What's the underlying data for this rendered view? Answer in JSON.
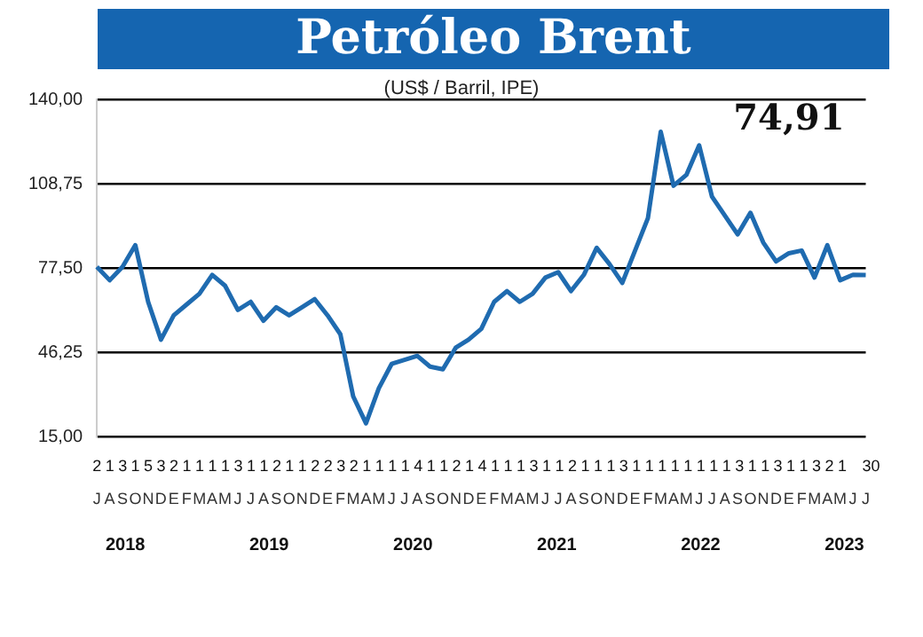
{
  "chart_data": {
    "type": "line",
    "title": "Petróleo Brent",
    "subtitle": "(US$ / Barril, IPE)",
    "categories": [
      "J",
      "A",
      "S",
      "O",
      "N",
      "D",
      "E",
      "F",
      "M",
      "A",
      "M",
      "J",
      "J",
      "A",
      "S",
      "O",
      "N",
      "D",
      "E",
      "F",
      "M",
      "A",
      "M",
      "J",
      "J",
      "A",
      "S",
      "O",
      "N",
      "D",
      "E",
      "F",
      "M",
      "A",
      "M",
      "J",
      "J",
      "A",
      "S",
      "O",
      "N",
      "D",
      "E",
      "F",
      "M",
      "A",
      "M",
      "J",
      "J",
      "A",
      "S",
      "O",
      "N",
      "D",
      "E",
      "F",
      "M",
      "A",
      "M",
      "J",
      "J"
    ],
    "series": [
      {
        "color": "#1f6bb0",
        "values": [
          78,
          73,
          78,
          86,
          65,
          51,
          60,
          64,
          68,
          75,
          71,
          62,
          65,
          58,
          63,
          60,
          63,
          66,
          60,
          53,
          30,
          20,
          33,
          42,
          43.5,
          45,
          41,
          40,
          48,
          51,
          55,
          65,
          69,
          65,
          68,
          74,
          76,
          69,
          75,
          85,
          79,
          72,
          84,
          96,
          128,
          108,
          112,
          123,
          104,
          97,
          90,
          98,
          87,
          80,
          83,
          84,
          74,
          86,
          73,
          75,
          74.91
        ]
      }
    ],
    "ylim": [
      15,
      140
    ],
    "yticks": [
      {
        "value": 15,
        "label": "15,00"
      },
      {
        "value": 46.25,
        "label": "46,25"
      },
      {
        "value": 77.5,
        "label": "77,50"
      },
      {
        "value": 108.75,
        "label": "108,75"
      },
      {
        "value": 140,
        "label": "140,00"
      }
    ],
    "grid": "y",
    "legend": false,
    "marker": "none",
    "line_style": "solid",
    "annotations": [
      "74,91",
      "2 1 3 1 5 3 2 1 1 1 1 3 1 1 2 1 1 2 2 3 2 1 1 1 1 4 1 1 2 1 4 1 1 1 3 1 1 2 1 1 1 3 1 1 1 1 1 1 1 1 3 1 1 3 1 1 3 2 1 30",
      "2018",
      "2019",
      "2020",
      "2021",
      "2022",
      "2023"
    ]
  }
}
